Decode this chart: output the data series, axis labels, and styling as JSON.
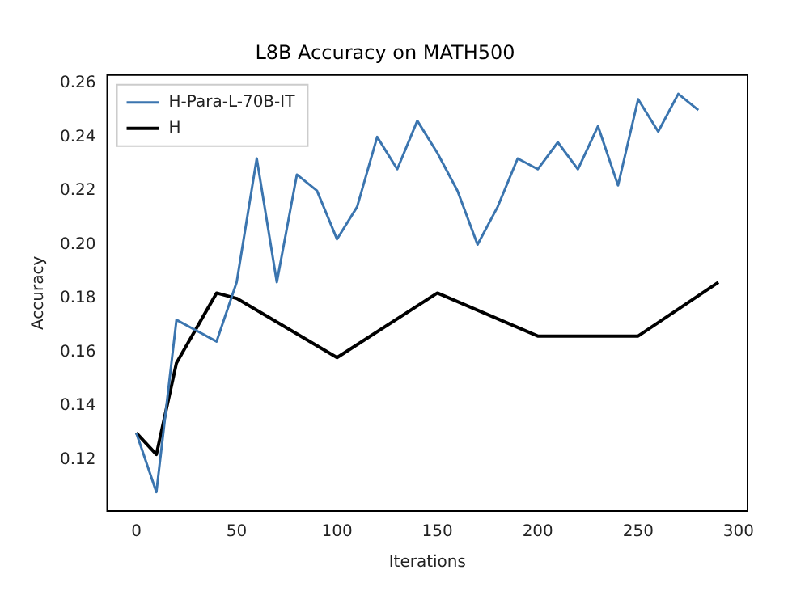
{
  "chart_data": {
    "type": "line",
    "title": "L8B Accuracy on MATH500",
    "xlabel": "Iterations",
    "ylabel": "Accuracy",
    "xlim": [
      -14.5,
      304.5
    ],
    "xticks": [
      0,
      50,
      100,
      150,
      200,
      250,
      300
    ],
    "ylim": [
      0.101,
      0.263
    ],
    "yticks": [
      {
        "value": 0.12,
        "label": "0.12"
      },
      {
        "value": 0.14,
        "label": "0.14"
      },
      {
        "value": 0.16,
        "label": "0.16"
      },
      {
        "value": 0.18,
        "label": "0.18"
      },
      {
        "value": 0.2,
        "label": "0.20"
      },
      {
        "value": 0.22,
        "label": "0.22"
      },
      {
        "value": 0.24,
        "label": "0.24"
      },
      {
        "value": 0.26,
        "label": "0.26"
      }
    ],
    "grid": false,
    "legend": "top left",
    "marker": "none",
    "line_style": "solid",
    "series": [
      {
        "name": "H-Para-L-70B-IT",
        "color": "#3b75af",
        "x": [
          0,
          10,
          20,
          30,
          40,
          50,
          60,
          70,
          80,
          90,
          100,
          110,
          120,
          130,
          140,
          150,
          160,
          170,
          180,
          190,
          200,
          210,
          220,
          230,
          240,
          250,
          260,
          270,
          280
        ],
        "values": [
          0.13,
          0.108,
          0.172,
          0.168,
          0.164,
          0.186,
          0.232,
          0.186,
          0.226,
          0.22,
          0.202,
          0.214,
          0.24,
          0.228,
          0.246,
          0.234,
          0.22,
          0.2,
          0.214,
          0.232,
          0.228,
          0.238,
          0.228,
          0.244,
          0.222,
          0.254,
          0.242,
          0.256,
          0.25
        ]
      },
      {
        "name": "H",
        "color": "#000000",
        "x": [
          0,
          10,
          20,
          40,
          50,
          100,
          150,
          200,
          250,
          290
        ],
        "values": [
          0.13,
          0.122,
          0.156,
          0.182,
          0.18,
          0.158,
          0.182,
          0.166,
          0.166,
          0.186
        ]
      }
    ]
  }
}
